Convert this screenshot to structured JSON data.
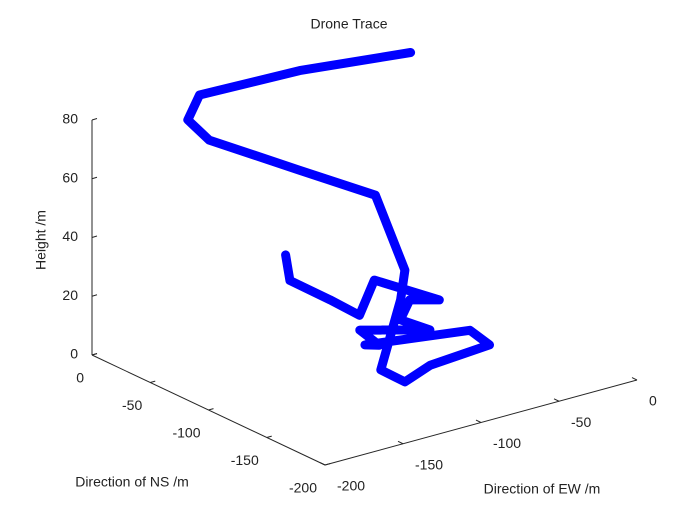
{
  "chart_data": {
    "type": "line3d",
    "title": "Drone Trace",
    "xlabel": "Direction of EW /m",
    "ylabel": "Direction of NS /m",
    "zlabel": "Height /m",
    "xlim": [
      -200,
      0
    ],
    "ylim": [
      -200,
      0
    ],
    "zlim": [
      0,
      80
    ],
    "xticks": [
      -200,
      -150,
      -100,
      -50,
      0
    ],
    "yticks": [
      -200,
      -150,
      -100,
      -50,
      0
    ],
    "zticks": [
      0,
      20,
      40,
      60,
      80
    ],
    "series": [
      {
        "color": "#0000ff",
        "x": [
          -111,
          -106,
          -119,
          -95,
          -84,
          -67,
          -74,
          -95,
          -79,
          -100,
          -95,
          -93,
          -63,
          -55,
          -84,
          -101,
          -103,
          -103,
          -101,
          -99,
          -121,
          -157,
          -161,
          -155,
          -111,
          -63
        ],
        "y": [
          -47,
          -44,
          -96,
          -89,
          -87,
          -120,
          -104,
          -124,
          -128,
          -96,
          -106,
          -91,
          -141,
          -147,
          -135,
          -136,
          -118,
          -135,
          -136,
          -108,
          -72,
          -43,
          -30,
          -32,
          -59,
          -90
        ],
        "z": [
          30,
          20,
          25,
          15,
          25,
          22,
          20,
          20,
          15,
          12,
          8,
          5,
          15,
          10,
          5,
          2,
          3,
          30,
          40,
          60,
          65,
          75,
          80,
          88,
          95,
          100
        ]
      }
    ]
  }
}
